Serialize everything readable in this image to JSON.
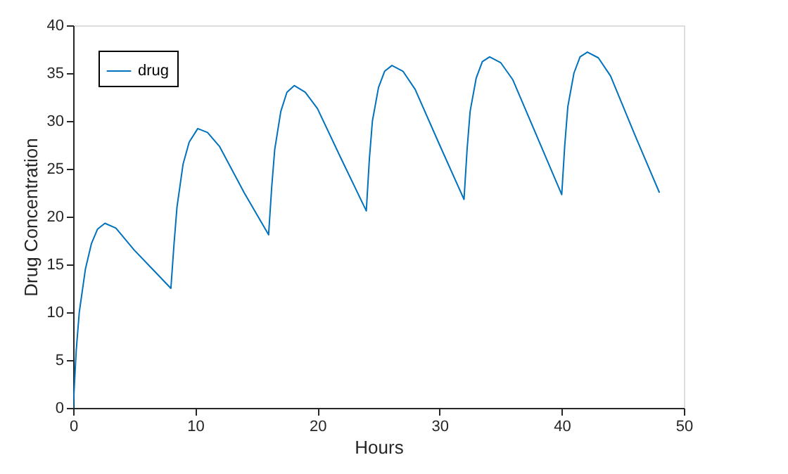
{
  "chart_data": {
    "type": "line",
    "xlabel": "Hours",
    "ylabel": "Drug Concentration",
    "xlim": [
      0,
      50
    ],
    "ylim": [
      0,
      40
    ],
    "xticks": [
      0,
      10,
      20,
      30,
      40,
      50
    ],
    "yticks": [
      0,
      5,
      10,
      15,
      20,
      25,
      30,
      35,
      40
    ],
    "grid": false,
    "legend": "top left",
    "marker": "none",
    "line_style": "solid",
    "series": [
      {
        "name": "drug",
        "color": "#0072bd",
        "x": [
          0,
          0.25,
          0.5,
          1,
          1.5,
          2,
          2.6,
          3.5,
          5,
          6.5,
          8,
          8.25,
          8.5,
          9,
          9.5,
          10.2,
          11,
          12,
          14,
          16,
          16.25,
          16.5,
          17,
          17.5,
          18.1,
          19,
          20,
          22,
          24,
          24.25,
          24.5,
          25,
          25.5,
          26.1,
          27,
          28,
          30,
          32,
          32.25,
          32.5,
          33,
          33.5,
          34.1,
          35,
          36,
          38,
          40,
          40.25,
          40.5,
          41,
          41.5,
          42.1,
          43,
          44,
          46,
          48
        ],
        "values": [
          0,
          6,
          10,
          14.5,
          17.2,
          18.7,
          19.3,
          18.8,
          16.5,
          14.5,
          12.5,
          17,
          21,
          25.5,
          27.8,
          29.2,
          28.8,
          27.3,
          22.5,
          18.1,
          23,
          27,
          31,
          33,
          33.7,
          33,
          31.3,
          25.9,
          20.6,
          26,
          30,
          33.5,
          35.2,
          35.8,
          35.2,
          33.3,
          27.5,
          21.8,
          27,
          31,
          34.5,
          36.2,
          36.7,
          36.1,
          34.3,
          28.3,
          22.3,
          27.5,
          31.5,
          35,
          36.7,
          37.2,
          36.6,
          34.7,
          28.5,
          22.5
        ]
      }
    ]
  }
}
